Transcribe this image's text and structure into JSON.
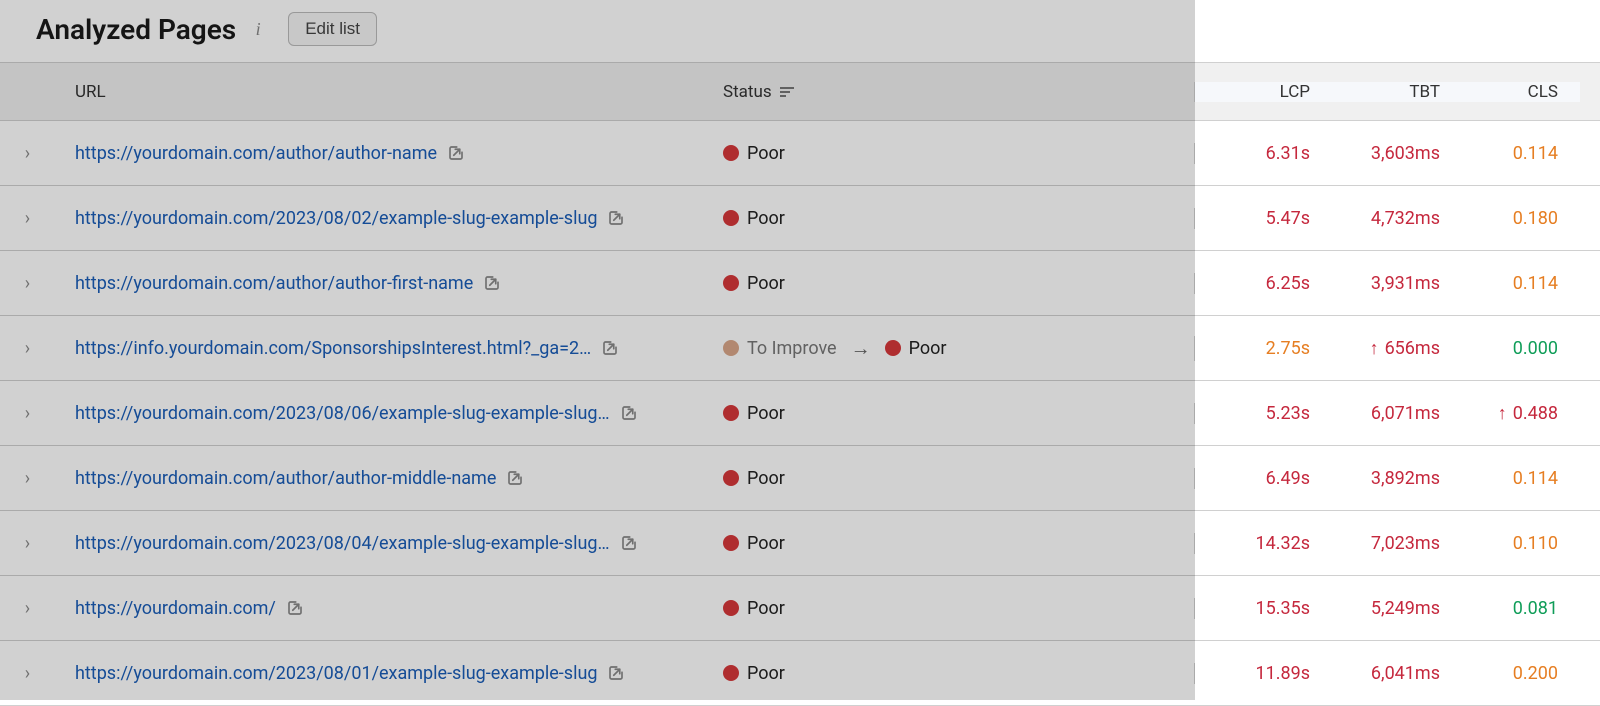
{
  "header": {
    "title": "Analyzed Pages",
    "edit_button": "Edit list"
  },
  "columns": {
    "url": "URL",
    "status": "Status",
    "lcp": "LCP",
    "tbt": "TBT",
    "cls": "CLS"
  },
  "status_colors": {
    "poor": "#d6373a",
    "to_improve": "#d9a789"
  },
  "metric_colors": {
    "red": "#c5283d",
    "orange": "#e67e22",
    "green": "#0f9d58"
  },
  "rows": [
    {
      "url": "https://yourdomain.com/author/author-name",
      "truncated": false,
      "status_prev": null,
      "status": "Poor",
      "lcp": {
        "val": "6.31s",
        "color": "red",
        "up": false
      },
      "tbt": {
        "val": "3,603ms",
        "color": "red",
        "up": false
      },
      "cls": {
        "val": "0.114",
        "color": "orange",
        "up": false
      }
    },
    {
      "url": "https://yourdomain.com/2023/08/02/example-slug-example-slug",
      "truncated": false,
      "status_prev": null,
      "status": "Poor",
      "lcp": {
        "val": "5.47s",
        "color": "red",
        "up": false
      },
      "tbt": {
        "val": "4,732ms",
        "color": "red",
        "up": false
      },
      "cls": {
        "val": "0.180",
        "color": "orange",
        "up": false
      }
    },
    {
      "url": "https://yourdomain.com/author/author-first-name",
      "truncated": false,
      "status_prev": null,
      "status": "Poor",
      "lcp": {
        "val": "6.25s",
        "color": "red",
        "up": false
      },
      "tbt": {
        "val": "3,931ms",
        "color": "red",
        "up": false
      },
      "cls": {
        "val": "0.114",
        "color": "orange",
        "up": false
      }
    },
    {
      "url": "https://info.yourdomain.com/SponsorshipsInterest.html?_ga=2…",
      "truncated": true,
      "status_prev": "To Improve",
      "status": "Poor",
      "lcp": {
        "val": "2.75s",
        "color": "orange",
        "up": false
      },
      "tbt": {
        "val": "656ms",
        "color": "red",
        "up": true
      },
      "cls": {
        "val": "0.000",
        "color": "green",
        "up": false
      }
    },
    {
      "url": "https://yourdomain.com/2023/08/06/example-slug-example-slug…",
      "truncated": true,
      "status_prev": null,
      "status": "Poor",
      "lcp": {
        "val": "5.23s",
        "color": "red",
        "up": false
      },
      "tbt": {
        "val": "6,071ms",
        "color": "red",
        "up": false
      },
      "cls": {
        "val": "0.488",
        "color": "red",
        "up": true
      }
    },
    {
      "url": "https://yourdomain.com/author/author-middle-name",
      "truncated": false,
      "status_prev": null,
      "status": "Poor",
      "lcp": {
        "val": "6.49s",
        "color": "red",
        "up": false
      },
      "tbt": {
        "val": "3,892ms",
        "color": "red",
        "up": false
      },
      "cls": {
        "val": "0.114",
        "color": "orange",
        "up": false
      }
    },
    {
      "url": "https://yourdomain.com/2023/08/04/example-slug-example-slug…",
      "truncated": true,
      "status_prev": null,
      "status": "Poor",
      "lcp": {
        "val": "14.32s",
        "color": "red",
        "up": false
      },
      "tbt": {
        "val": "7,023ms",
        "color": "red",
        "up": false
      },
      "cls": {
        "val": "0.110",
        "color": "orange",
        "up": false
      }
    },
    {
      "url": "https://yourdomain.com/",
      "truncated": false,
      "status_prev": null,
      "status": "Poor",
      "lcp": {
        "val": "15.35s",
        "color": "red",
        "up": false
      },
      "tbt": {
        "val": "5,249ms",
        "color": "red",
        "up": false
      },
      "cls": {
        "val": "0.081",
        "color": "green",
        "up": false
      }
    },
    {
      "url": "https://yourdomain.com/2023/08/01/example-slug-example-slug",
      "truncated": false,
      "status_prev": null,
      "status": "Poor",
      "lcp": {
        "val": "11.89s",
        "color": "red",
        "up": false
      },
      "tbt": {
        "val": "6,041ms",
        "color": "red",
        "up": false
      },
      "cls": {
        "val": "0.200",
        "color": "orange",
        "up": false
      }
    }
  ]
}
